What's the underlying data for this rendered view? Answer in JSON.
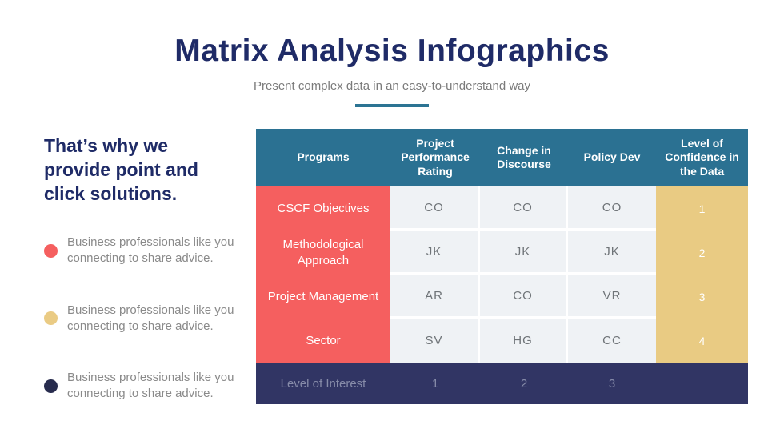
{
  "header": {
    "title": "Matrix Analysis Infographics",
    "subtitle": "Present complex data in an easy-to-understand way"
  },
  "sidebar": {
    "heading": "That’s why we provide point and click solutions.",
    "bullets": [
      {
        "dot_color": "#F55F5F",
        "text": "Business professionals like you connecting to share advice."
      },
      {
        "dot_color": "#EACB84",
        "text": "Business professionals like you connecting to share advice."
      },
      {
        "dot_color": "#282C4E",
        "text": "Business professionals like you connecting to share advice."
      }
    ]
  },
  "chart_data": {
    "type": "table",
    "title": "Matrix Analysis Infographics",
    "columns": [
      "Programs",
      "Project Performance Rating",
      "Change in Discourse",
      "Policy Dev",
      "Level of Confidence in the Data"
    ],
    "rows": [
      [
        "CSCF Objectives",
        "CO",
        "CO",
        "CO",
        "1"
      ],
      [
        "Methodological Approach",
        "JK",
        "JK",
        "JK",
        "2"
      ],
      [
        "Project Management",
        "AR",
        "CO",
        "VR",
        "3"
      ],
      [
        "Sector",
        "SV",
        "HG",
        "CC",
        "4"
      ]
    ],
    "footer": [
      "Level of Interest",
      "1",
      "2",
      "3",
      ""
    ]
  },
  "colors": {
    "title_navy": "#1F2B67",
    "header_teal": "#2B7192",
    "divider_teal": "#2C7493",
    "red_column": "#F55F5F",
    "tan_column": "#E9CB83",
    "footer_navy": "#313564",
    "light_cell": "#EFF2F5",
    "cell_text_gray": "#6F7478",
    "body_text_gray": "#8A8A8A",
    "footer_text_gray": "#878CA9"
  }
}
